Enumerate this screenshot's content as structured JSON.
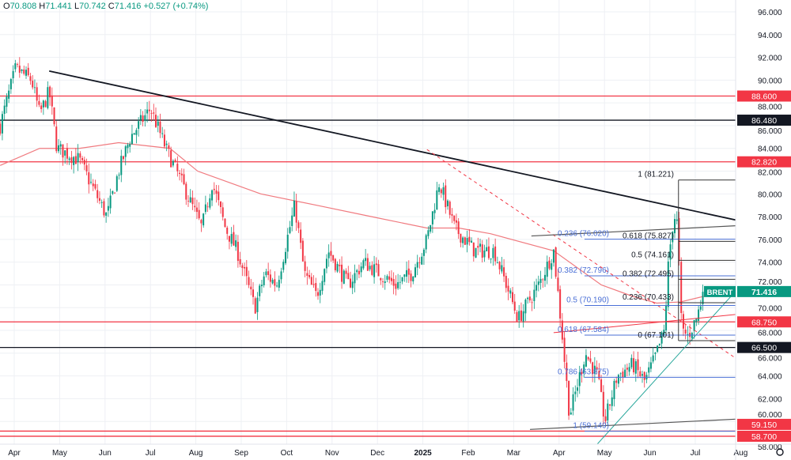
{
  "legend": {
    "o_label": "O",
    "o": "70.808",
    "h_label": "H",
    "h": "71.441",
    "l_label": "L",
    "l": "70.742",
    "c_label": "C",
    "c": "71.416",
    "change": "+0.527 (+0.74%)"
  },
  "colors": {
    "up": "#089981",
    "down": "#f23645",
    "ma": "#f07a7f",
    "grid": "#eef0f4",
    "fib_blue": "#4a6fd6",
    "fib_black": "#333333",
    "support": "#f23645",
    "trend": "#000000",
    "channel": "#26a69a"
  },
  "settings_icon": "gear-icon",
  "chart_data": {
    "type": "candlestick",
    "symbol": "BRENT",
    "last_price": "71.416",
    "ylim": [
      58,
      96
    ],
    "y_ticks": [
      "58.000",
      "60.000",
      "62.000",
      "64.000",
      "66.000",
      "68.000",
      "70.000",
      "72.000",
      "74.000",
      "76.000",
      "78.000",
      "80.000",
      "82.000",
      "84.000",
      "86.000",
      "88.000",
      "90.000",
      "92.000",
      "94.000",
      "96.000"
    ],
    "x_ticks": [
      "Apr",
      "May",
      "Jun",
      "Jul",
      "Aug",
      "Sep",
      "Oct",
      "Nov",
      "Dec",
      "2025",
      "Feb",
      "Mar",
      "Apr",
      "May",
      "Jun",
      "Jul",
      "Aug"
    ],
    "x_unit": "months since Apr 2024",
    "price_path": [
      [
        -0.31,
        86
      ],
      [
        0.03,
        91
      ],
      [
        0.38,
        90
      ],
      [
        0.56,
        87
      ],
      [
        0.77,
        89
      ],
      [
        0.94,
        84
      ],
      [
        1.43,
        83
      ],
      [
        2.04,
        78
      ],
      [
        2.3,
        82
      ],
      [
        2.56,
        85
      ],
      [
        3.0,
        87.5
      ],
      [
        3.34,
        84
      ],
      [
        3.69,
        81
      ],
      [
        4.13,
        77
      ],
      [
        4.36,
        81
      ],
      [
        4.65,
        77
      ],
      [
        4.91,
        75
      ],
      [
        5.3,
        70
      ],
      [
        5.52,
        73
      ],
      [
        5.78,
        72
      ],
      [
        6.18,
        79
      ],
      [
        6.39,
        73
      ],
      [
        6.66,
        71
      ],
      [
        6.92,
        75
      ],
      [
        7.35,
        72
      ],
      [
        7.7,
        74
      ],
      [
        8.05,
        73
      ],
      [
        8.4,
        72
      ],
      [
        8.75,
        73
      ],
      [
        9.09,
        76
      ],
      [
        9.36,
        81
      ],
      [
        9.7,
        77
      ],
      [
        10.14,
        75
      ],
      [
        10.57,
        75
      ],
      [
        10.84,
        72
      ],
      [
        11.1,
        69
      ],
      [
        11.55,
        72
      ],
      [
        11.88,
        75
      ],
      [
        12.06,
        68
      ],
      [
        12.23,
        60.5
      ],
      [
        12.58,
        66
      ],
      [
        12.84,
        64
      ],
      [
        13.01,
        60
      ],
      [
        13.28,
        64
      ],
      [
        13.62,
        65
      ],
      [
        13.89,
        63.5
      ],
      [
        14.15,
        66
      ],
      [
        14.32,
        68
      ],
      [
        14.41,
        74
      ],
      [
        14.49,
        77
      ],
      [
        14.58,
        78.5
      ],
      [
        14.63,
        75
      ],
      [
        14.7,
        68
      ],
      [
        14.84,
        67.5
      ],
      [
        15.02,
        69
      ],
      [
        15.19,
        71.4
      ]
    ],
    "moving_average": [
      [
        -0.31,
        82.5
      ],
      [
        0.56,
        84
      ],
      [
        1.43,
        84
      ],
      [
        2.3,
        84.5
      ],
      [
        3.43,
        84
      ],
      [
        4.04,
        82
      ],
      [
        5.43,
        80
      ],
      [
        6.66,
        79
      ],
      [
        7.87,
        78
      ],
      [
        9.09,
        77
      ],
      [
        9.79,
        77
      ],
      [
        10.49,
        76.5
      ],
      [
        11.88,
        75
      ],
      [
        12.93,
        72
      ],
      [
        13.62,
        71
      ],
      [
        14.15,
        70.4
      ],
      [
        14.67,
        70.5
      ],
      [
        15.19,
        71
      ]
    ],
    "horizontal_levels": [
      {
        "price": 88.6,
        "label": "88.600",
        "color": "red"
      },
      {
        "price": 86.48,
        "label": "86.480",
        "color": "black"
      },
      {
        "price": 82.82,
        "label": "82.820",
        "color": "red"
      },
      {
        "price": 68.75,
        "label": "68.750",
        "color": "red"
      },
      {
        "price": 66.5,
        "label": "66.500",
        "color": "black"
      },
      {
        "price": 59.15,
        "label": "59.150",
        "color": "red"
      },
      {
        "price": 58.7,
        "label": "58.700",
        "color": "red"
      }
    ],
    "trendlines": [
      {
        "name": "downtrend-line",
        "from": [
          0.77,
          90.8
        ],
        "to": [
          16.59,
          77.1
        ],
        "color": "black",
        "dash": false,
        "width": 1.8
      },
      {
        "name": "ascending-channel-line",
        "from": [
          12.84,
          58
        ],
        "to": [
          16.15,
          72.6
        ],
        "color": "green",
        "dash": false,
        "width": 1
      },
      {
        "name": "dashed-resistance-line",
        "from": [
          9.09,
          83.9
        ],
        "to": [
          16.06,
          65.1
        ],
        "color": "red",
        "dash": true,
        "width": 1
      },
      {
        "name": "upper-gray-line",
        "from": [
          11.39,
          76.3
        ],
        "to": [
          15.89,
          77.2
        ],
        "color": "gray",
        "dash": false,
        "width": 1.2
      },
      {
        "name": "lower-gray-line",
        "from": [
          11.36,
          59.3
        ],
        "to": [
          15.89,
          60.2
        ],
        "color": "gray",
        "dash": false,
        "width": 1.2
      },
      {
        "name": "rising-red-line",
        "from": [
          11.88,
          67.8
        ],
        "to": [
          15.89,
          69.4
        ],
        "color": "red",
        "dash": false,
        "width": 1
      }
    ],
    "fib_blue": {
      "start": 12.56,
      "end": 15.98,
      "levels": [
        {
          "price": 76.02,
          "label": "0.236 (76.020)"
        },
        {
          "price": 72.796,
          "label": "0.382 (72.796)"
        },
        {
          "price": 70.19,
          "label": "0.5 (70.190)"
        },
        {
          "price": 67.584,
          "label": "0.618 (67.584)"
        },
        {
          "price": 63.875,
          "label": "0.786 (63.875)"
        },
        {
          "price": 59.149,
          "label": "1 (59.149)"
        }
      ]
    },
    "fib_black": {
      "start": 14.63,
      "end": 15.98,
      "levels": [
        {
          "price": 81.221,
          "label": "1 (81.221)"
        },
        {
          "price": 75.827,
          "label": "0.618 (75.827)"
        },
        {
          "price": 74.161,
          "label": "0.5 (74.161)"
        },
        {
          "price": 72.495,
          "label": "0.382 (72.495)"
        },
        {
          "price": 70.433,
          "label": "0.236 (70.433)"
        },
        {
          "price": 67.101,
          "label": "0 (67.101)"
        }
      ]
    }
  }
}
